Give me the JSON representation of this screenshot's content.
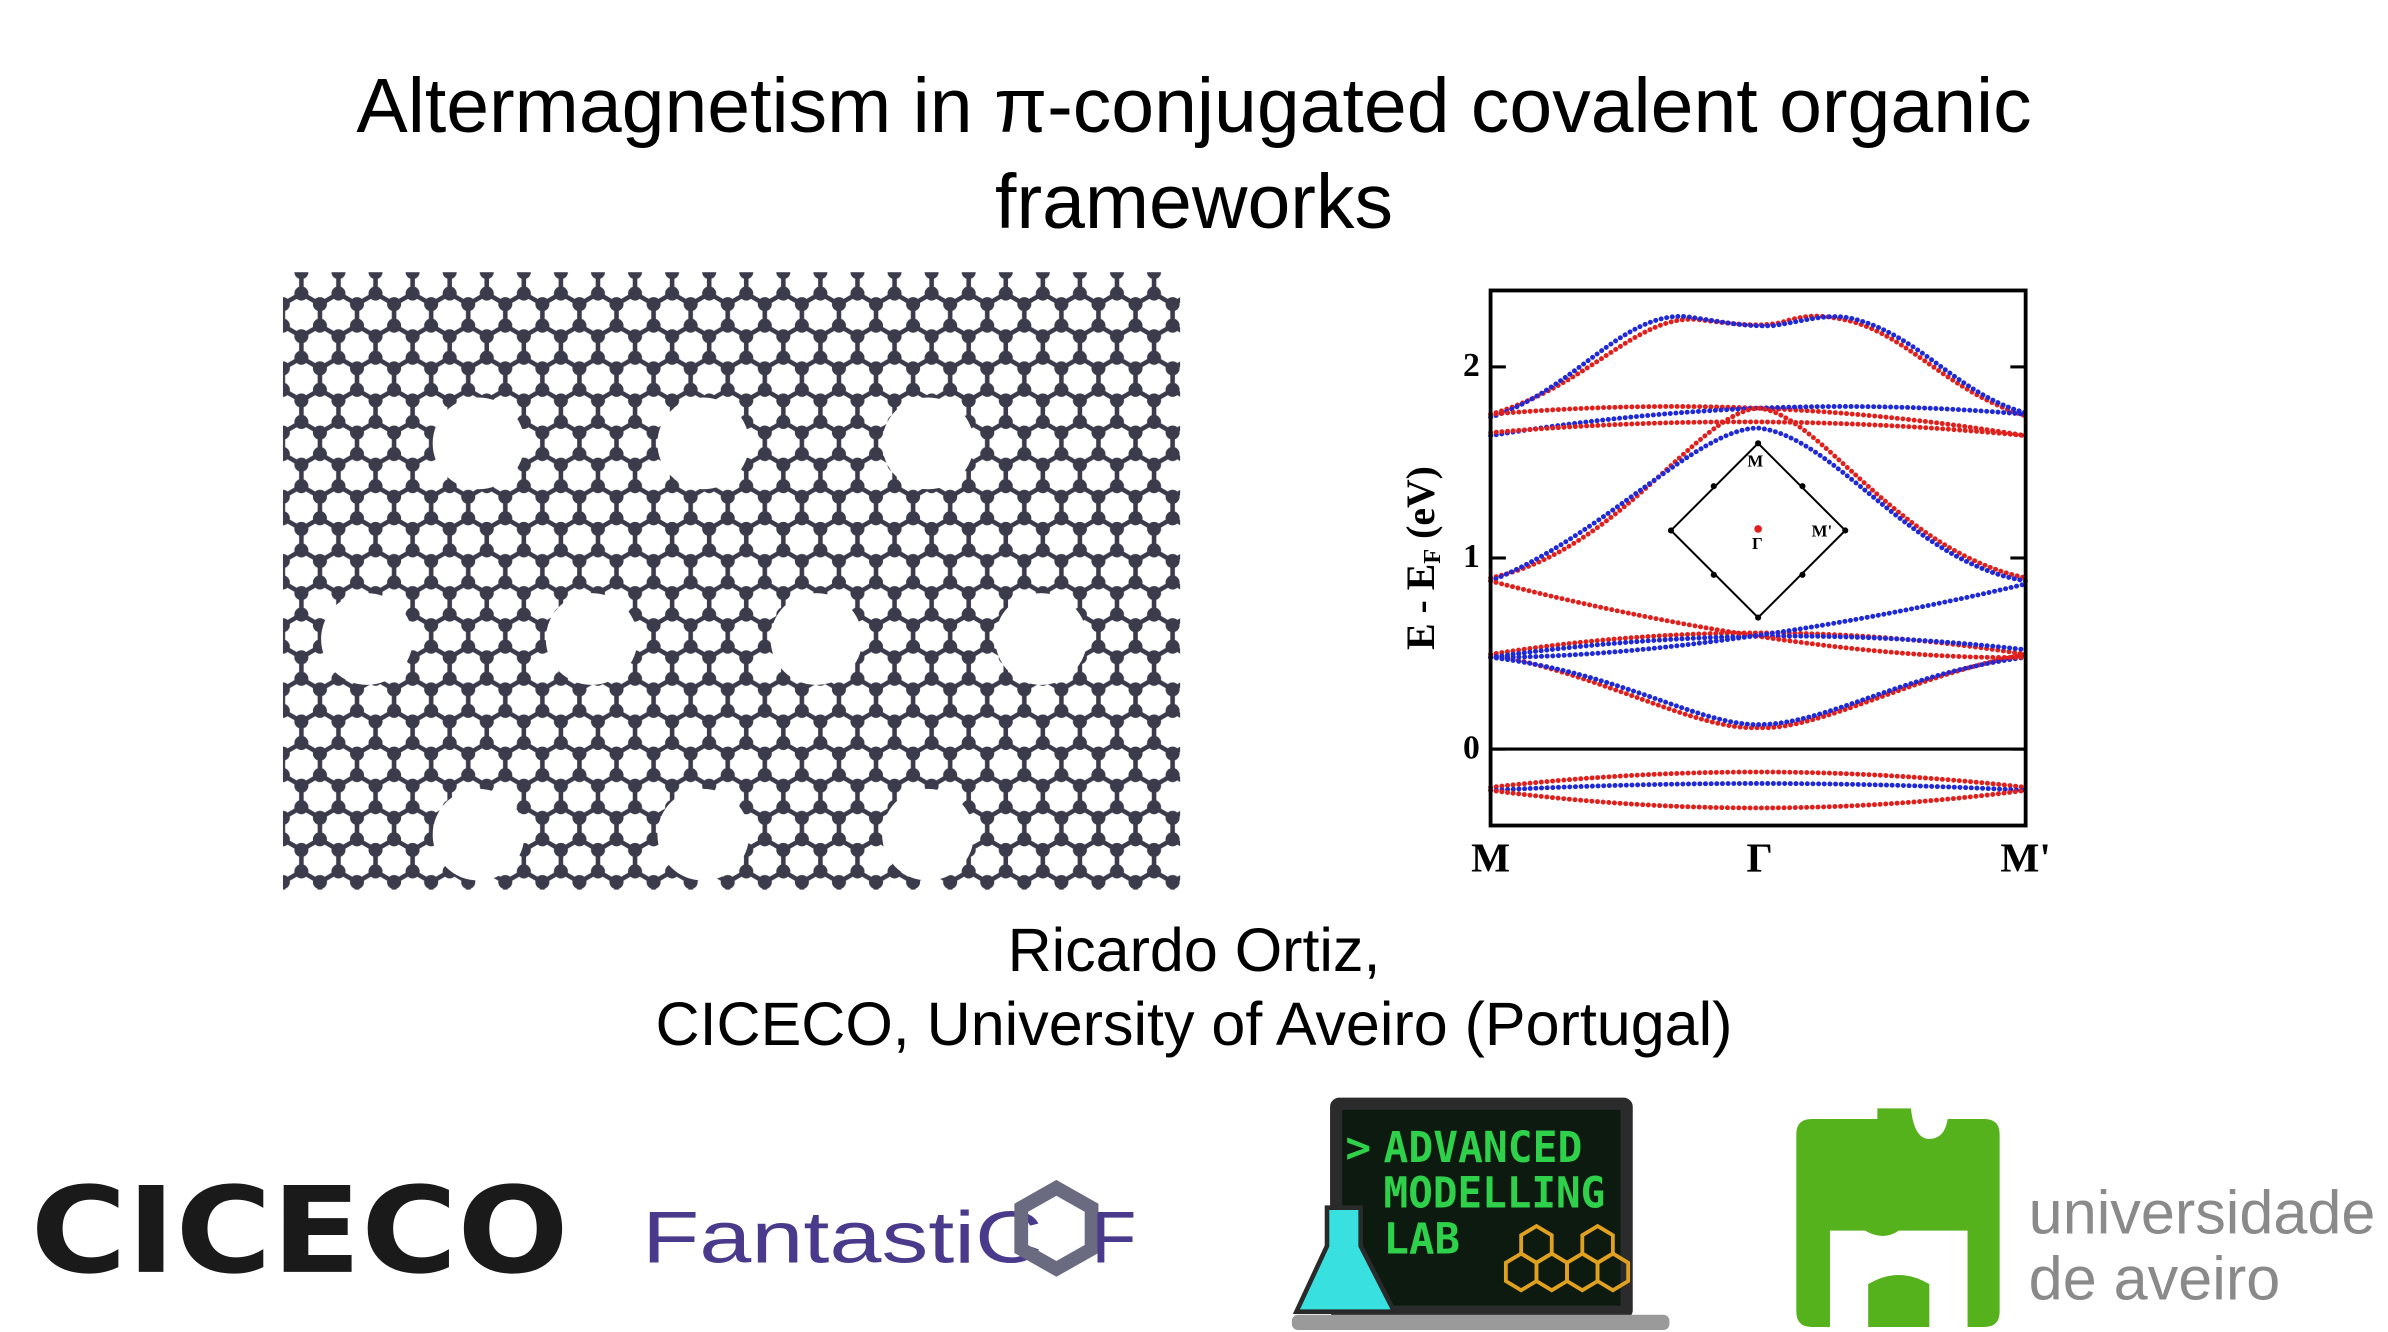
{
  "title": "Altermagnetism in π-conjugated covalent organic frameworks",
  "band_figure": {
    "y_label": {
      "main": "E - E",
      "subscript": "F",
      "unit": " (eV)"
    },
    "y_tick_labels": [
      "0",
      "1",
      "2"
    ],
    "k_labels": [
      "M",
      "Γ",
      "M'"
    ],
    "inset_labels": [
      "M",
      "Γ",
      "M'"
    ]
  },
  "author": "Ricardo Ortiz,",
  "affiliation": "CICECO, University of Aveiro (Portugal)",
  "logos": {
    "ciceco": "CICECO",
    "fantasticof": {
      "before": "FantastiC",
      "after": "F"
    },
    "modelling_lab": {
      "prompt": ">",
      "lines": [
        "ADVANCED",
        "MODELLING",
        "LAB"
      ]
    },
    "university": [
      "universidade",
      "de aveiro"
    ]
  }
}
